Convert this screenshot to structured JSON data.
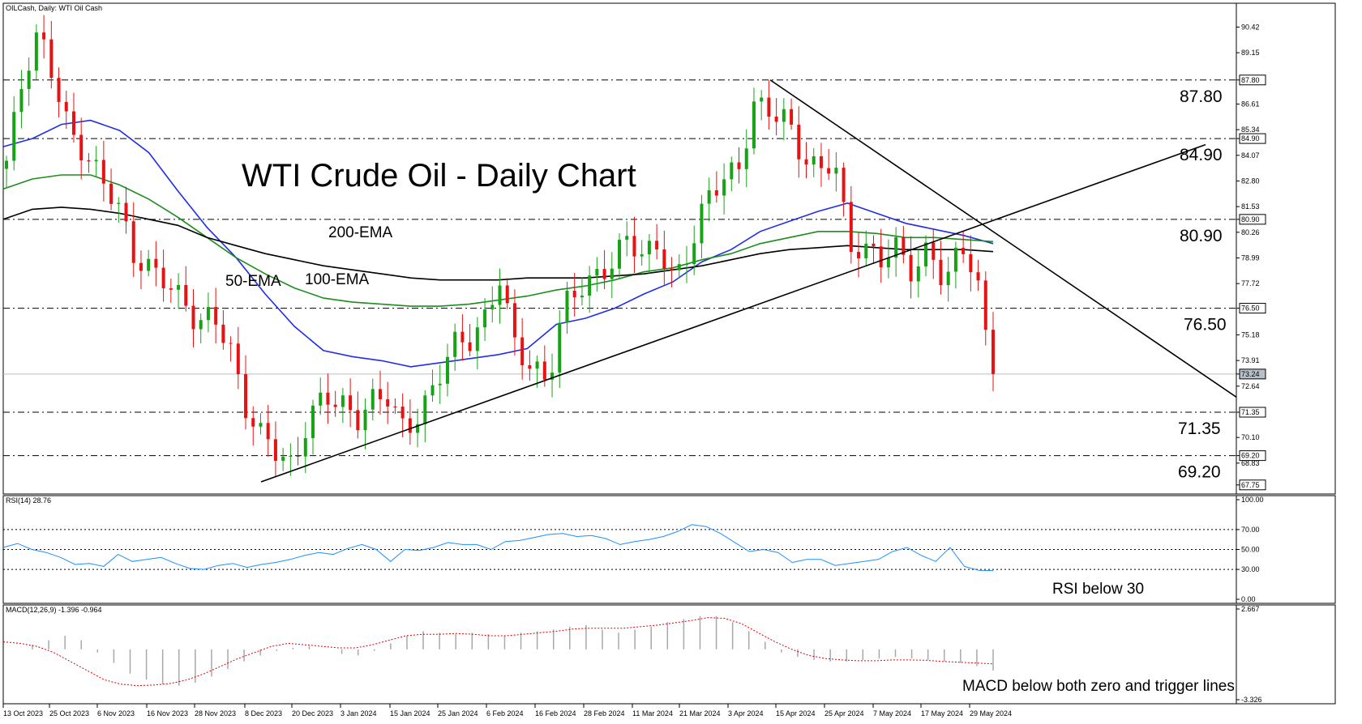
{
  "header": {
    "symbol_label": "OILCash, Daily:  WTI Oil Cash",
    "chart_title": "WTI Crude Oil - Daily Chart"
  },
  "chart_data": [
    {
      "type": "candlestick",
      "title": "WTI Crude Oil - Daily Chart",
      "symbol": "OILCash, Daily:  WTI Oil Cash",
      "ylim": [
        67.3,
        91.6
      ],
      "y_ticks": [
        "90.42",
        "89.15",
        "87.80",
        "86.61",
        "85.34",
        "84.90",
        "84.07",
        "82.80",
        "81.53",
        "80.90",
        "80.26",
        "78.99",
        "77.72",
        "76.50",
        "75.18",
        "73.91",
        "73.24",
        "72.64",
        "71.35",
        "70.10",
        "69.20",
        "68.83",
        "67.75"
      ],
      "highlight_ticks": [
        "87.80",
        "84.90",
        "80.90",
        "76.50",
        "73.24",
        "71.35",
        "69.20",
        "67.75"
      ],
      "current_price": "73.24",
      "x_labels": [
        "13 Oct 2023",
        "25 Oct 2023",
        "6 Nov 2023",
        "16 Nov 2023",
        "28 Nov 2023",
        "8 Dec 2023",
        "20 Dec 2023",
        "3 Jan 2024",
        "15 Jan 2024",
        "25 Jan 2024",
        "6 Feb 2024",
        "16 Feb 2024",
        "28 Feb 2024",
        "11 Mar 2024",
        "21 Mar 2024",
        "3 Apr 2024",
        "15 Apr 2024",
        "25 Apr 2024",
        "7 May 2024",
        "17 May 2024",
        "29 May 2024"
      ],
      "horizontal_levels": [
        {
          "label": "87.80",
          "value": 87.8
        },
        {
          "label": "84.90",
          "value": 84.9
        },
        {
          "label": "80.90",
          "value": 80.9
        },
        {
          "label": "76.50",
          "value": 76.5
        },
        {
          "label": "71.35",
          "value": 71.35
        },
        {
          "label": "69.20",
          "value": 69.2
        }
      ],
      "trendlines": [
        {
          "name": "support",
          "from": {
            "x": "8 Dec 2023",
            "y": 67.9
          },
          "to": {
            "x": "Jun 2024",
            "y": 84.6
          }
        },
        {
          "name": "resistance",
          "from": {
            "x": "5 Apr 2024",
            "y": 87.8
          },
          "to": {
            "x": "Jun 2024",
            "y": 72.1
          }
        }
      ],
      "ema_labels": [
        "200-EMA",
        "50-EMA",
        "100-EMA"
      ],
      "series": [
        {
          "name": "50-EMA",
          "color": "#1f2ee8",
          "values": [
            84.5,
            84.9,
            85.6,
            85.8,
            85.3,
            84.2,
            82.3,
            80.5,
            79.0,
            77.2,
            75.6,
            74.4,
            74.1,
            73.9,
            73.6,
            73.8,
            74.0,
            74.2,
            74.5,
            75.7,
            76.0,
            76.5,
            77.2,
            77.8,
            78.8,
            79.4,
            80.3,
            80.8,
            81.3,
            81.7,
            81.2,
            80.7,
            80.4,
            80.1,
            79.7
          ]
        },
        {
          "name": "100-EMA",
          "color": "#1d8c1d",
          "values": [
            82.4,
            82.9,
            83.1,
            83.1,
            82.6,
            81.9,
            81.0,
            80.0,
            79.0,
            78.2,
            77.5,
            77.0,
            76.8,
            76.7,
            76.6,
            76.6,
            76.7,
            76.9,
            77.1,
            77.4,
            77.6,
            77.9,
            78.3,
            78.5,
            78.9,
            79.2,
            79.7,
            80.0,
            80.3,
            80.3,
            80.2,
            80.0,
            80.0,
            79.9,
            79.8
          ]
        },
        {
          "name": "200-EMA",
          "color": "#000000",
          "values": [
            80.9,
            81.4,
            81.5,
            81.4,
            81.2,
            80.9,
            80.6,
            80.0,
            79.6,
            79.2,
            78.9,
            78.6,
            78.4,
            78.2,
            78.0,
            77.9,
            77.9,
            77.9,
            78.0,
            78.0,
            78.0,
            78.1,
            78.2,
            78.4,
            78.6,
            78.9,
            79.2,
            79.4,
            79.5,
            79.6,
            79.5,
            79.4,
            79.4,
            79.4,
            79.3
          ]
        }
      ],
      "candle_path": [
        83.8,
        87.4,
        89.9,
        88.0,
        85.5,
        84.2,
        82.6,
        81.3,
        79.0,
        78.8,
        78.2,
        76.8,
        75.3,
        76.0,
        74.9,
        71.9,
        70.3,
        69.1,
        68.2,
        71.2,
        72.6,
        72.0,
        70.7,
        71.6,
        72.1,
        70.7,
        71.6,
        72.7,
        74.4,
        74.6,
        76.0,
        78.4,
        74.6,
        73.3,
        72.4,
        76.7,
        77.9,
        78.2,
        78.5,
        79.6,
        79.0,
        79.9,
        78.1,
        79.5,
        81.6,
        82.7,
        83.5,
        87.0,
        86.4,
        85.6,
        83.6,
        83.3,
        84.3,
        79.8,
        79.2,
        78.6,
        79.4,
        78.4,
        79.9,
        77.6,
        79.5,
        77.4,
        73.2
      ],
      "closing_note": "Last close 73.24"
    },
    {
      "type": "line",
      "title": "RSI(14) 28.76",
      "ylim": [
        0,
        100
      ],
      "y_ticks": [
        "100.00",
        "70.00",
        "50.00",
        "30.00",
        "0.00"
      ],
      "levels": [
        70,
        50,
        30
      ],
      "series": [
        {
          "name": "RSI(14)",
          "color": "#1e90ff",
          "values": [
            52,
            56,
            50,
            47,
            42,
            35,
            36,
            33,
            45,
            38,
            40,
            42,
            36,
            31,
            30,
            34,
            36,
            32,
            35,
            37,
            40,
            44,
            47,
            45,
            51,
            55,
            50,
            38,
            50,
            49,
            52,
            57,
            55,
            55,
            50,
            58,
            59,
            62,
            65,
            66,
            63,
            64,
            61,
            55,
            58,
            60,
            63,
            68,
            75,
            73,
            66,
            57,
            48,
            50,
            47,
            37,
            40,
            40,
            34,
            36,
            38,
            40,
            48,
            52,
            44,
            38,
            52,
            33,
            29
          ]
        },
        {
          "name": "last",
          "values": [
            28.76
          ]
        }
      ],
      "annotation": "RSI below 30"
    },
    {
      "type": "bar",
      "title": "MACD(12,26,9) -1.396 -0.964",
      "ylim": [
        -3.326,
        2.667
      ],
      "y_ticks": [
        "2.667",
        "-3.326"
      ],
      "series": [
        {
          "name": "MACD histogram",
          "color": "#a8a8a8",
          "values": [
            0.3,
            0.6,
            0.9,
            0.6,
            -0.2,
            -0.9,
            -1.6,
            -2.0,
            -2.3,
            -2.4,
            -2.2,
            -1.8,
            -1.3,
            -0.8,
            -0.4,
            -0.1,
            0.1,
            0.2,
            0.0,
            -0.3,
            -0.4,
            -0.1,
            0.4,
            0.9,
            1.2,
            1.1,
            1.0,
            1.1,
            1.0,
            0.9,
            1.1,
            1.2,
            1.3,
            1.5,
            1.6,
            1.3,
            1.1,
            1.3,
            1.5,
            1.8,
            2.0,
            2.2,
            2.2,
            1.8,
            1.2,
            0.5,
            -0.2,
            -0.5,
            -0.7,
            -0.8,
            -0.8,
            -0.7,
            -0.6,
            -0.5,
            -0.6,
            -0.7,
            -0.8,
            -0.9,
            -1.1,
            -1.4
          ]
        },
        {
          "name": "Signal line",
          "color": "#e00000",
          "values": [
            0.5,
            0.4,
            0.2,
            -0.2,
            -0.8,
            -1.4,
            -2.0,
            -2.3,
            -2.4,
            -2.35,
            -2.25,
            -2.0,
            -1.6,
            -1.1,
            -0.6,
            -0.2,
            0.2,
            0.4,
            0.3,
            0.2,
            0.1,
            0.1,
            0.3,
            0.6,
            0.9,
            1.0,
            1.0,
            1.05,
            1.0,
            0.9,
            0.9,
            1.0,
            1.1,
            1.2,
            1.35,
            1.4,
            1.4,
            1.4,
            1.5,
            1.6,
            1.75,
            1.9,
            2.1,
            2.05,
            1.7,
            1.1,
            0.5,
            0.0,
            -0.4,
            -0.6,
            -0.7,
            -0.75,
            -0.75,
            -0.7,
            -0.7,
            -0.72,
            -0.8,
            -0.85,
            -0.9,
            -0.96
          ]
        }
      ],
      "annotation": "MACD below both zero and trigger lines"
    }
  ]
}
